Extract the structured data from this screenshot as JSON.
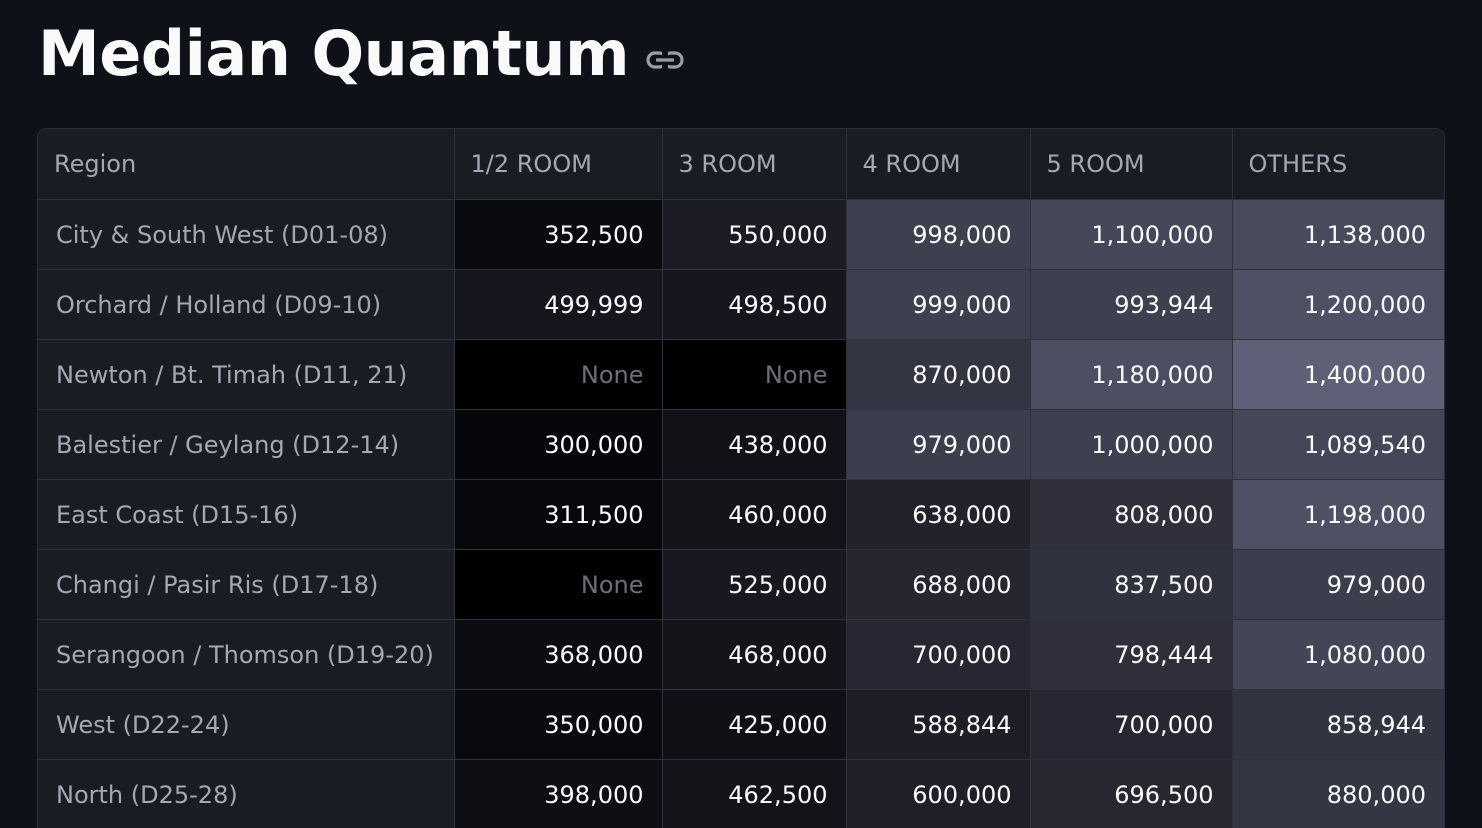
{
  "page": {
    "title": "Median Quantum"
  },
  "icons": {
    "anchor_link": "link-icon"
  },
  "table": {
    "columns": [
      "Region",
      "1/2 ROOM",
      "3 ROOM",
      "4 ROOM",
      "5 ROOM",
      "OTHERS"
    ],
    "rows": [
      {
        "region": "City & South West (D01-08)",
        "cells": [
          "352,500",
          "550,000",
          "998,000",
          "1,100,000",
          "1,138,000"
        ]
      },
      {
        "region": "Orchard / Holland (D09-10)",
        "cells": [
          "499,999",
          "498,500",
          "999,000",
          "993,944",
          "1,200,000"
        ]
      },
      {
        "region": "Newton / Bt. Timah (D11, 21)",
        "cells": [
          "None",
          "None",
          "870,000",
          "1,180,000",
          "1,400,000"
        ]
      },
      {
        "region": "Balestier / Geylang (D12-14)",
        "cells": [
          "300,000",
          "438,000",
          "979,000",
          "1,000,000",
          "1,089,540"
        ]
      },
      {
        "region": "East Coast (D15-16)",
        "cells": [
          "311,500",
          "460,000",
          "638,000",
          "808,000",
          "1,198,000"
        ]
      },
      {
        "region": "Changi / Pasir Ris (D17-18)",
        "cells": [
          "None",
          "525,000",
          "688,000",
          "837,500",
          "979,000"
        ]
      },
      {
        "region": "Serangoon / Thomson (D19-20)",
        "cells": [
          "368,000",
          "468,000",
          "700,000",
          "798,444",
          "1,080,000"
        ]
      },
      {
        "region": "West (D22-24)",
        "cells": [
          "350,000",
          "425,000",
          "588,844",
          "700,000",
          "858,944"
        ]
      },
      {
        "region": "North (D25-28)",
        "cells": [
          "398,000",
          "462,500",
          "600,000",
          "696,500",
          "880,000"
        ]
      }
    ],
    "heatmap": {
      "min_value": 300000,
      "max_value": 1400000,
      "none_color": "#000000",
      "low_color": "#06070a",
      "high_color": "#5e6077"
    }
  }
}
